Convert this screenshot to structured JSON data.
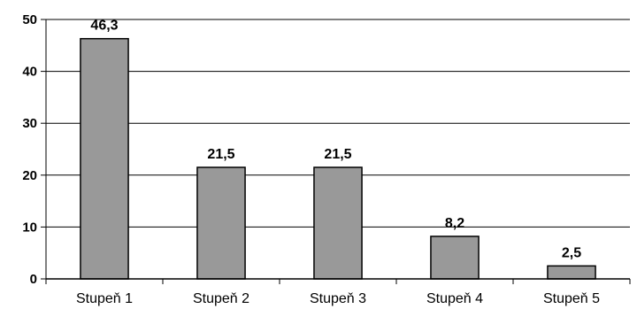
{
  "chart_data": {
    "type": "bar",
    "categories": [
      "Stupeň 1",
      "Stupeň 2",
      "Stupeň 3",
      "Stupeň 4",
      "Stupeň 5"
    ],
    "values": [
      46.3,
      21.5,
      21.5,
      8.2,
      2.5
    ],
    "data_labels": [
      "46,3",
      "21,5",
      "21,5",
      "8,2",
      "2,5"
    ],
    "yticks": [
      0,
      10,
      20,
      30,
      40,
      50
    ],
    "ylim": [
      0,
      50
    ],
    "grid": true,
    "bar_color": "#999999",
    "title": "",
    "xlabel": "",
    "ylabel": ""
  }
}
